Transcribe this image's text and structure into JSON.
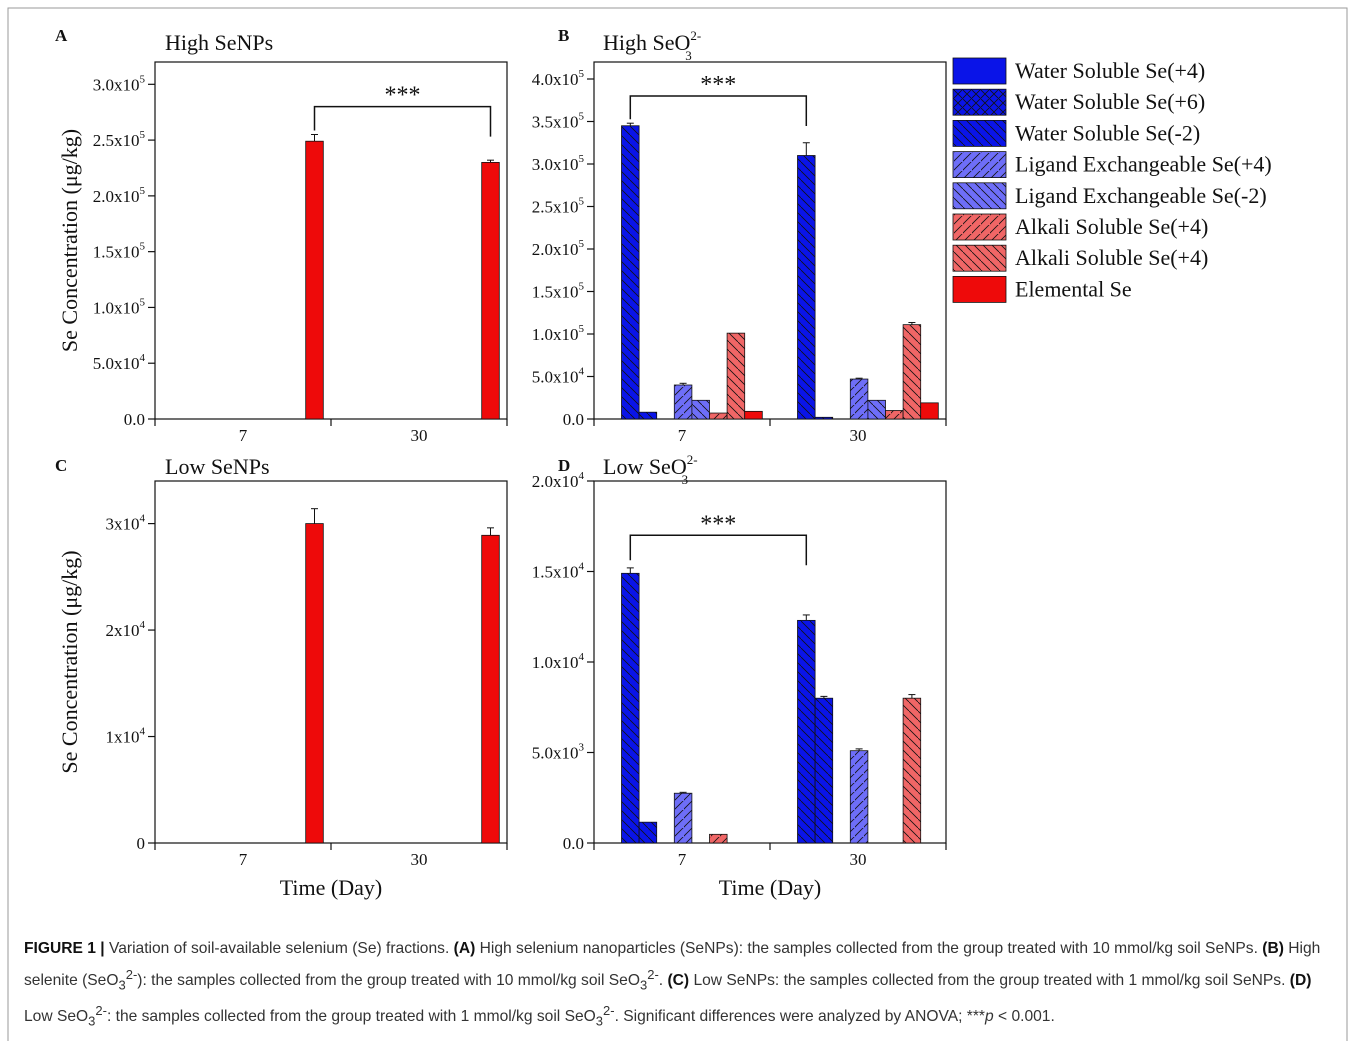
{
  "chart_data": [
    {
      "type": "bar",
      "panel": "A",
      "title": "High SeNPs",
      "ylabel": "Se Concentration (μg/kg)",
      "xlabel": "",
      "categories": [
        "7",
        "30"
      ],
      "ylim": [
        0,
        320000
      ],
      "yticks": [
        {
          "v": 0,
          "m": "0.0",
          "e": ""
        },
        {
          "v": 50000,
          "m": "5.0x10",
          "e": "4"
        },
        {
          "v": 100000,
          "m": "1.0x10",
          "e": "5"
        },
        {
          "v": 150000,
          "m": "1.5x10",
          "e": "5"
        },
        {
          "v": 200000,
          "m": "2.0x10",
          "e": "5"
        },
        {
          "v": 250000,
          "m": "2.5x10",
          "e": "5"
        },
        {
          "v": 300000,
          "m": "3.0x10",
          "e": "5"
        }
      ],
      "series": [
        {
          "name": "Water Soluble Se(+4)",
          "values": [
            0,
            0
          ],
          "errors": [
            0,
            0
          ]
        },
        {
          "name": "Water Soluble Se(+6)",
          "values": [
            0,
            0
          ],
          "errors": [
            0,
            0
          ]
        },
        {
          "name": "Water Soluble Se(-2)",
          "values": [
            0,
            0
          ],
          "errors": [
            0,
            0
          ]
        },
        {
          "name": "Ligand Exchangeable Se(+4)",
          "values": [
            0,
            0
          ],
          "errors": [
            0,
            0
          ]
        },
        {
          "name": "Ligand Exchangeable Se(-2)",
          "values": [
            0,
            0
          ],
          "errors": [
            0,
            0
          ]
        },
        {
          "name": "Alkali Soluble Se(+4)",
          "values": [
            0,
            0
          ],
          "errors": [
            0,
            0
          ]
        },
        {
          "name": "Alkali Soluble Se(+4)",
          "values": [
            0,
            0
          ],
          "errors": [
            0,
            0
          ]
        },
        {
          "name": "Elemental Se",
          "values": [
            249000,
            230000
          ],
          "errors": [
            6000,
            2000
          ]
        }
      ],
      "significance": {
        "label": "***",
        "from_series": 7,
        "from_cat": 0,
        "to_series": 7,
        "to_cat": 1,
        "y": 280000
      }
    },
    {
      "type": "bar",
      "panel": "B",
      "title": "High SeO",
      "title_sup": "2-",
      "title_sub": "3",
      "ylabel": "",
      "xlabel": "",
      "categories": [
        "7",
        "30"
      ],
      "ylim": [
        0,
        420000
      ],
      "yticks": [
        {
          "v": 0,
          "m": "0.0",
          "e": ""
        },
        {
          "v": 50000,
          "m": "5.0x10",
          "e": "4"
        },
        {
          "v": 100000,
          "m": "1.0x10",
          "e": "5"
        },
        {
          "v": 150000,
          "m": "1.5x10",
          "e": "5"
        },
        {
          "v": 200000,
          "m": "2.0x10",
          "e": "5"
        },
        {
          "v": 250000,
          "m": "2.5x10",
          "e": "5"
        },
        {
          "v": 300000,
          "m": "3.0x10",
          "e": "5"
        },
        {
          "v": 350000,
          "m": "3.5x10",
          "e": "5"
        },
        {
          "v": 400000,
          "m": "4.0x10",
          "e": "5"
        }
      ],
      "series": [
        {
          "name": "Water Soluble Se(+4)",
          "values": [
            345000,
            310000
          ],
          "errors": [
            3000,
            15000
          ]
        },
        {
          "name": "Water Soluble Se(+6)",
          "values": [
            8000,
            2000
          ],
          "errors": [
            0,
            0
          ]
        },
        {
          "name": "Water Soluble Se(-2)",
          "values": [
            0,
            0
          ],
          "errors": [
            0,
            0
          ]
        },
        {
          "name": "Ligand Exchangeable Se(+4)",
          "values": [
            40000,
            47000
          ],
          "errors": [
            2000,
            1000
          ]
        },
        {
          "name": "Ligand Exchangeable Se(-2)",
          "values": [
            22000,
            22000
          ],
          "errors": [
            0,
            0
          ]
        },
        {
          "name": "Alkali Soluble Se(+4)",
          "values": [
            7000,
            10000
          ],
          "errors": [
            0,
            0
          ]
        },
        {
          "name": "Alkali Soluble Se(+4)",
          "values": [
            101000,
            111000
          ],
          "errors": [
            0,
            2500
          ]
        },
        {
          "name": "Elemental Se",
          "values": [
            9000,
            19000
          ],
          "errors": [
            0,
            0
          ]
        }
      ],
      "significance": {
        "label": "***",
        "from_series": 0,
        "from_cat": 0,
        "to_series": 0,
        "to_cat": 1,
        "y": 380000
      }
    },
    {
      "type": "bar",
      "panel": "C",
      "title": "Low SeNPs",
      "ylabel": "Se Concentration (μg/kg)",
      "xlabel": "Time (Day)",
      "categories": [
        "7",
        "30"
      ],
      "ylim": [
        0,
        34000
      ],
      "yticks": [
        {
          "v": 0,
          "m": "0",
          "e": ""
        },
        {
          "v": 10000,
          "m": "1x10",
          "e": "4"
        },
        {
          "v": 20000,
          "m": "2x10",
          "e": "4"
        },
        {
          "v": 30000,
          "m": "3x10",
          "e": "4"
        }
      ],
      "series": [
        {
          "name": "Water Soluble Se(+4)",
          "values": [
            0,
            0
          ],
          "errors": [
            0,
            0
          ]
        },
        {
          "name": "Water Soluble Se(+6)",
          "values": [
            0,
            0
          ],
          "errors": [
            0,
            0
          ]
        },
        {
          "name": "Water Soluble Se(-2)",
          "values": [
            0,
            0
          ],
          "errors": [
            0,
            0
          ]
        },
        {
          "name": "Ligand Exchangeable Se(+4)",
          "values": [
            0,
            0
          ],
          "errors": [
            0,
            0
          ]
        },
        {
          "name": "Ligand Exchangeable Se(-2)",
          "values": [
            0,
            0
          ],
          "errors": [
            0,
            0
          ]
        },
        {
          "name": "Alkali Soluble Se(+4)",
          "values": [
            0,
            0
          ],
          "errors": [
            0,
            0
          ]
        },
        {
          "name": "Alkali Soluble Se(+4)",
          "values": [
            0,
            0
          ],
          "errors": [
            0,
            0
          ]
        },
        {
          "name": "Elemental Se",
          "values": [
            30000,
            28900
          ],
          "errors": [
            1400,
            700
          ]
        }
      ],
      "significance": null
    },
    {
      "type": "bar",
      "panel": "D",
      "title": "Low SeO",
      "title_sup": "2-",
      "title_sub": "3",
      "ylabel": "",
      "xlabel": "Time (Day)",
      "categories": [
        "7",
        "30"
      ],
      "ylim": [
        0,
        20000
      ],
      "yticks": [
        {
          "v": 0,
          "m": "0.0",
          "e": ""
        },
        {
          "v": 5000,
          "m": "5.0x10",
          "e": "3"
        },
        {
          "v": 10000,
          "m": "1.0x10",
          "e": "4"
        },
        {
          "v": 15000,
          "m": "1.5x10",
          "e": "4"
        },
        {
          "v": 20000,
          "m": "2.0x10",
          "e": "4"
        }
      ],
      "series": [
        {
          "name": "Water Soluble Se(+4)",
          "values": [
            14900,
            12300
          ],
          "errors": [
            300,
            300
          ]
        },
        {
          "name": "Water Soluble Se(+6)",
          "values": [
            1150,
            8000
          ],
          "errors": [
            0,
            100
          ]
        },
        {
          "name": "Water Soluble Se(-2)",
          "values": [
            0,
            0
          ],
          "errors": [
            0,
            0
          ]
        },
        {
          "name": "Ligand Exchangeable Se(+4)",
          "values": [
            2750,
            5100
          ],
          "errors": [
            50,
            100
          ]
        },
        {
          "name": "Ligand Exchangeable Se(-2)",
          "values": [
            0,
            0
          ],
          "errors": [
            0,
            0
          ]
        },
        {
          "name": "Alkali Soluble Se(+4)",
          "values": [
            480,
            0
          ],
          "errors": [
            0,
            0
          ]
        },
        {
          "name": "Alkali Soluble Se(+4)",
          "values": [
            0,
            8000
          ],
          "errors": [
            0,
            200
          ]
        },
        {
          "name": "Elemental Se",
          "values": [
            0,
            0
          ],
          "errors": [
            0,
            0
          ]
        }
      ],
      "significance": {
        "label": "***",
        "from_series": 0,
        "from_cat": 0,
        "to_series": 0,
        "to_cat": 1,
        "y": 17000
      }
    }
  ],
  "legend": {
    "placement": "right",
    "items": [
      {
        "label": "Water Soluble Se(+4)",
        "color": "#0a14e8",
        "hatch": "none"
      },
      {
        "label": "Water Soluble Se(+6)",
        "color": "#0a14e8",
        "hatch": "cross"
      },
      {
        "label": "Water Soluble Se(-2)",
        "color": "#0a14e8",
        "hatch": "back"
      },
      {
        "label": "Ligand Exchangeable Se(+4)",
        "color": "#6e6ef8",
        "hatch": "fwd"
      },
      {
        "label": "Ligand Exchangeable Se(-2)",
        "color": "#6e6ef8",
        "hatch": "back"
      },
      {
        "label": "Alkali Soluble Se(+4)",
        "color": "#f06666",
        "hatch": "fwd"
      },
      {
        "label": "Alkali Soluble Se(+4)",
        "color": "#f06666",
        "hatch": "back"
      },
      {
        "label": "Elemental Se",
        "color": "#ee0a0a",
        "hatch": "none"
      }
    ]
  },
  "series_styles": [
    {
      "color": "#0a14e8",
      "hatch": "back"
    },
    {
      "color": "#0a14e8",
      "hatch": "back"
    },
    {
      "color": "#0a14e8",
      "hatch": "back"
    },
    {
      "color": "#6e6ef8",
      "hatch": "fwd"
    },
    {
      "color": "#6e6ef8",
      "hatch": "back"
    },
    {
      "color": "#f06666",
      "hatch": "fwd"
    },
    {
      "color": "#f06666",
      "hatch": "back"
    },
    {
      "color": "#ee0a0a",
      "hatch": "none"
    }
  ],
  "caption": {
    "label": "FIGURE 1 |",
    "intro": " Variation of soil-available selenium (Se) fractions. ",
    "a_tag": "(A)",
    "a_text": " High selenium nanoparticles (SeNPs): the samples collected from the group treated with 10 mmol/kg soil SeNPs. ",
    "b_tag": "(B)",
    "b_text1": " High selenite (SeO",
    "b_sub1": "3",
    "b_sup1": "2-",
    "b_text2": "): the samples collected from the group treated with 10 mmol/kg soil SeO",
    "b_sub2": "3",
    "b_sup2": "2-",
    "b_text3": ". ",
    "c_tag": "(C)",
    "c_text": " Low SeNPs: the samples collected from the group treated with 1 mmol/kg soil SeNPs. ",
    "d_tag": "(D)",
    "d_text1": " Low SeO",
    "d_sub1": "3",
    "d_sup1": "2-",
    "d_text2": ": the samples collected from the group treated with 1 mmol/kg soil SeO",
    "d_sub2": "3",
    "d_sup2": "2-",
    "d_text3": ". Significant differences were analyzed by ANOVA; ***",
    "p_italic": "p",
    "d_text4": " < 0.001."
  }
}
